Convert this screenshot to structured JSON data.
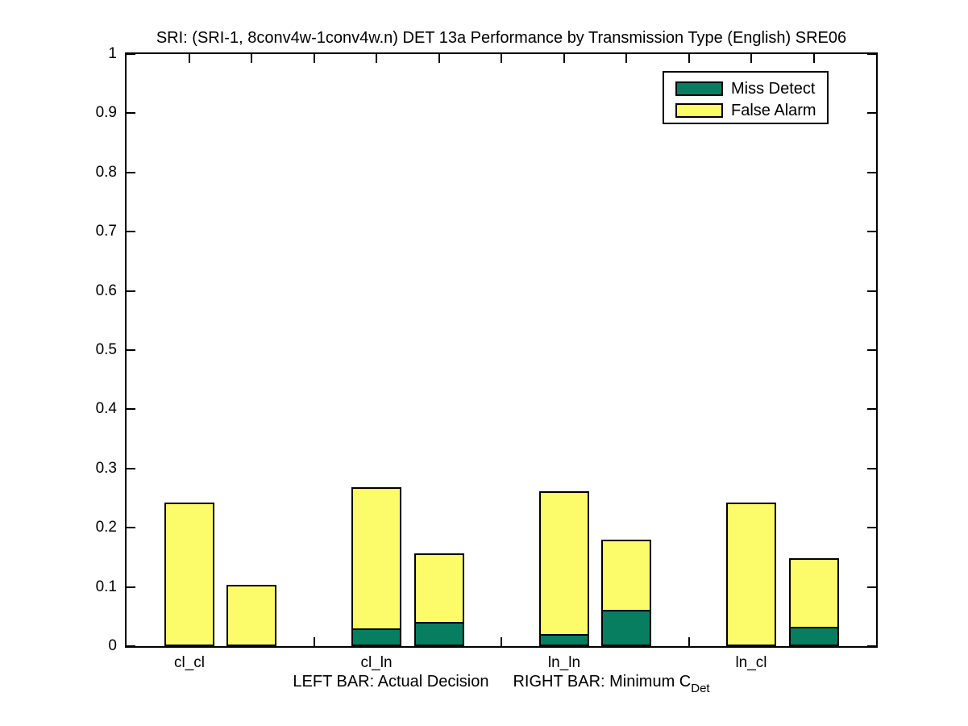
{
  "title": "SRI: (SRI-1, 8conv4w-1conv4w.n) DET 13a Performance by Transmission Type (English) SRE06",
  "colors": {
    "miss_detect": "#077E60",
    "false_alarm": "#FCFC6B",
    "axis": "#000000",
    "background": "#FFFFFF"
  },
  "legend": {
    "position": "top-right",
    "items": [
      {
        "label": "Miss Detect",
        "color_key": "miss_detect"
      },
      {
        "label": "False Alarm",
        "color_key": "false_alarm"
      }
    ]
  },
  "xlabel": {
    "left_text": "LEFT BAR: Actual Decision",
    "right_text": "RIGHT BAR: Minimum C",
    "right_subscript": "Det"
  },
  "chart_data": {
    "type": "bar",
    "stacked": true,
    "grid": false,
    "title": "SRI: (SRI-1, 8conv4w-1conv4w.n) DET 13a Performance by Transmission Type (English) SRE06",
    "xlabel": "LEFT BAR: Actual Decision    RIGHT BAR: Minimum C_Det",
    "ylabel": "",
    "categories": [
      "cl_cl",
      "cl_ln",
      "ln_ln",
      "ln_cl"
    ],
    "bar_meaning": {
      "left": "Actual Decision",
      "right": "Minimum C_Det"
    },
    "groups": [
      {
        "category": "cl_cl",
        "actual_decision": {
          "miss_detect": 0.0,
          "false_alarm": 0.242
        },
        "minimum_cdet": {
          "miss_detect": 0.0,
          "false_alarm": 0.104
        }
      },
      {
        "category": "cl_ln",
        "actual_decision": {
          "miss_detect": 0.027,
          "false_alarm": 0.241
        },
        "minimum_cdet": {
          "miss_detect": 0.038,
          "false_alarm": 0.119
        }
      },
      {
        "category": "ln_ln",
        "actual_decision": {
          "miss_detect": 0.018,
          "false_alarm": 0.243
        },
        "minimum_cdet": {
          "miss_detect": 0.058,
          "false_alarm": 0.122
        }
      },
      {
        "category": "ln_cl",
        "actual_decision": {
          "miss_detect": 0.0,
          "false_alarm": 0.242
        },
        "minimum_cdet": {
          "miss_detect": 0.03,
          "false_alarm": 0.118
        }
      }
    ],
    "series": [
      {
        "name": "Miss Detect",
        "actual_decision": [
          0.0,
          0.027,
          0.018,
          0.0
        ],
        "minimum_cdet": [
          0.0,
          0.038,
          0.058,
          0.03
        ]
      },
      {
        "name": "False Alarm",
        "actual_decision": [
          0.242,
          0.241,
          0.243,
          0.242
        ],
        "minimum_cdet": [
          0.104,
          0.119,
          0.122,
          0.118
        ]
      }
    ],
    "xlim": [
      0,
      12
    ],
    "ylim": [
      0,
      1
    ],
    "bar_centers_x": [
      [
        1,
        2
      ],
      [
        4,
        5
      ],
      [
        7,
        8
      ],
      [
        10,
        11
      ]
    ],
    "bar_width_units": 0.8,
    "xticks": [
      1,
      2,
      3,
      4,
      5,
      6,
      7,
      8,
      9,
      10,
      11
    ],
    "category_label_x": [
      1,
      4,
      7,
      10
    ],
    "yticks": [
      0,
      0.1,
      0.2,
      0.3,
      0.4,
      0.5,
      0.6,
      0.7,
      0.8,
      0.9,
      1
    ],
    "ytick_labels": [
      "0",
      "0.1",
      "0.2",
      "0.3",
      "0.4",
      "0.5",
      "0.6",
      "0.7",
      "0.8",
      "0.9",
      "1"
    ],
    "legend_position": "top-right"
  }
}
